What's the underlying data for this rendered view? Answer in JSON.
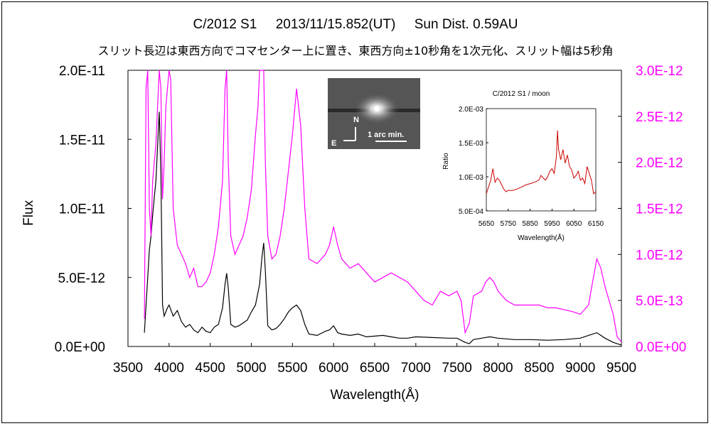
{
  "title": "C/2012 S1     2013/11/15.852(UT)     Sun Dist. 0.59AU",
  "subtitle": "スリット長辺は東西方向でコマセンター上に置き、東西方向±10秒角を1次元化、スリット幅は5秒角",
  "colors": {
    "left_series": "#000000",
    "right_series": "#ff00ff",
    "inset_series": "#cc0000"
  },
  "image_inset": {
    "north_label": "N",
    "east_label": "E",
    "scale_label": "1 arc min."
  },
  "chart_data": [
    {
      "type": "line",
      "xlabel": "Wavelength(Å)",
      "ylabel": "Flux",
      "xlim": [
        3500,
        9500
      ],
      "ylim_left": [
        0,
        2e-11
      ],
      "ylim_right": [
        0,
        3e-12
      ],
      "x_ticks": [
        "3500",
        "4000",
        "4500",
        "5000",
        "5500",
        "6000",
        "6500",
        "7000",
        "7500",
        "8000",
        "8500",
        "9000",
        "9500"
      ],
      "y_ticks_left": [
        "0.0E+00",
        "5.0E-12",
        "1.0E-11",
        "1.5E-11",
        "2.0E-11"
      ],
      "y_ticks_right": [
        "0.0E+00",
        "5.0E-13",
        "1.0E-12",
        "1.5E-12",
        "2.0E-12",
        "2.5E-12",
        "3.0E-12"
      ],
      "series": [
        {
          "axis": "left",
          "x": [
            3700,
            3720,
            3740,
            3760,
            3780,
            3800,
            3820,
            3840,
            3860,
            3880,
            3900,
            3920,
            3940,
            3960,
            3980,
            4000,
            4050,
            4100,
            4150,
            4200,
            4250,
            4300,
            4350,
            4400,
            4450,
            4500,
            4550,
            4600,
            4650,
            4680,
            4700,
            4720,
            4750,
            4800,
            4850,
            4900,
            4950,
            5000,
            5050,
            5100,
            5130,
            5150,
            5170,
            5200,
            5250,
            5300,
            5350,
            5400,
            5450,
            5500,
            5550,
            5600,
            5650,
            5700,
            5800,
            5900,
            5950,
            6000,
            6050,
            6100,
            6200,
            6300,
            6400,
            6500,
            6600,
            6700,
            6800,
            6900,
            7000,
            7200,
            7400,
            7500,
            7600,
            7650,
            7700,
            7800,
            7900,
            8000,
            8200,
            8400,
            8600,
            8800,
            9000,
            9100,
            9200,
            9250,
            9300,
            9400,
            9500
          ],
          "values": [
            1e-12,
            3e-12,
            5e-12,
            7e-12,
            8e-12,
            9.5e-12,
            1.08e-11,
            1.2e-11,
            1.45e-11,
            1.7e-11,
            1.25e-11,
            3e-12,
            2.2e-12,
            2.5e-12,
            2.8e-12,
            3e-12,
            2.2e-12,
            2.6e-12,
            1.8e-12,
            1.4e-12,
            1.6e-12,
            1.2e-12,
            1e-12,
            1.4e-12,
            1.1e-12,
            1e-12,
            1.4e-12,
            1.6e-12,
            2.8e-12,
            4.5e-12,
            5.3e-12,
            4.2e-12,
            1.6e-12,
            1.4e-12,
            1.5e-12,
            1.7e-12,
            1.9e-12,
            2.5e-12,
            3e-12,
            4.5e-12,
            6.5e-12,
            7.5e-12,
            5.5e-12,
            1.5e-12,
            1.2e-12,
            1.3e-12,
            1.6e-12,
            2e-12,
            2.5e-12,
            2.8e-12,
            3e-12,
            2.6e-12,
            1.6e-12,
            9e-13,
            8e-13,
            1.1e-12,
            1.2e-12,
            1.5e-12,
            1e-12,
            9e-13,
            8e-13,
            9e-13,
            7e-13,
            7.5e-13,
            8e-13,
            7e-13,
            6e-13,
            6e-13,
            7e-13,
            6.5e-13,
            6e-13,
            6e-13,
            3e-13,
            2e-13,
            5e-13,
            6e-13,
            7e-13,
            6e-13,
            5e-13,
            5e-13,
            4.5e-13,
            5e-13,
            6e-13,
            8e-13,
            1e-12,
            8e-13,
            6e-13,
            3e-13,
            1e-13
          ]
        },
        {
          "axis": "right",
          "x": [
            3700,
            3720,
            3740,
            3760,
            3780,
            3800,
            3820,
            3840,
            3860,
            3880,
            3900,
            3920,
            3940,
            3960,
            3980,
            4000,
            4020,
            4050,
            4100,
            4150,
            4200,
            4250,
            4300,
            4350,
            4400,
            4450,
            4500,
            4550,
            4600,
            4650,
            4680,
            4700,
            4720,
            4750,
            4800,
            4850,
            4900,
            4950,
            5000,
            5050,
            5080,
            5100,
            5150,
            5170,
            5200,
            5250,
            5300,
            5350,
            5400,
            5450,
            5500,
            5550,
            5600,
            5650,
            5700,
            5800,
            5900,
            5950,
            6000,
            6050,
            6100,
            6200,
            6300,
            6400,
            6500,
            6600,
            6700,
            6800,
            6900,
            7000,
            7100,
            7200,
            7300,
            7400,
            7500,
            7550,
            7600,
            7650,
            7700,
            7800,
            7850,
            7900,
            7950,
            8000,
            8100,
            8200,
            8300,
            8400,
            8500,
            8600,
            8700,
            8800,
            8900,
            9000,
            9100,
            9150,
            9200,
            9250,
            9300,
            9400,
            9450,
            9500
          ],
          "values": [
            3e-13,
            2.8e-12,
            3e-12,
            1.5e-12,
            1.2e-12,
            1.8e-12,
            2e-12,
            2.2e-12,
            2.6e-12,
            3e-12,
            2.8e-12,
            1.6e-12,
            2e-12,
            2.6e-12,
            2.8e-12,
            3e-12,
            2.9e-12,
            1.5e-12,
            1.1e-12,
            1e-12,
            9e-13,
            7.5e-13,
            8.5e-13,
            6.5e-13,
            6.5e-13,
            7e-13,
            8e-13,
            1e-12,
            1.3e-12,
            1.8e-12,
            2.8e-12,
            3e-12,
            2e-12,
            1.2e-12,
            1e-12,
            1.1e-12,
            1.2e-12,
            1.4e-12,
            1.7e-12,
            2.3e-12,
            2.6e-12,
            3e-12,
            3e-12,
            2e-12,
            1.2e-12,
            9.5e-13,
            1e-12,
            1.2e-12,
            1.5e-12,
            1.9e-12,
            2.3e-12,
            2.8e-12,
            2.4e-12,
            1.5e-12,
            9.5e-13,
            9e-13,
            1e-12,
            1.1e-12,
            1.3e-12,
            1.1e-12,
            9.5e-13,
            8.5e-13,
            9e-13,
            8e-13,
            7e-13,
            7.5e-13,
            8e-13,
            7.5e-13,
            7e-13,
            6e-13,
            5e-13,
            4.5e-13,
            6e-13,
            5.5e-13,
            6e-13,
            5e-13,
            1.5e-13,
            2.5e-13,
            5.5e-13,
            6e-13,
            7e-13,
            7.5e-13,
            7e-13,
            6e-13,
            5e-13,
            4.5e-13,
            4.5e-13,
            4.5e-13,
            4.5e-13,
            4.2e-13,
            4.2e-13,
            4e-13,
            3.8e-13,
            3.5e-13,
            4.5e-13,
            7e-13,
            9.5e-13,
            8.5e-13,
            6.5e-13,
            3.5e-13,
            1e-13,
            5e-14
          ]
        }
      ]
    },
    {
      "type": "line",
      "title": "C/2012 S1 / moon",
      "xlabel": "Wavelength(Å)",
      "ylabel": "Ratio",
      "xlim": [
        5650,
        6150
      ],
      "ylim": [
        0.0005,
        0.002
      ],
      "x_ticks": [
        "5650",
        "5750",
        "5850",
        "5950",
        "6050",
        "6150"
      ],
      "y_ticks": [
        "5.0E-04",
        "1.0E-03",
        "1.5E-03",
        "2.0E-03"
      ],
      "series": [
        {
          "x": [
            5650,
            5660,
            5670,
            5680,
            5690,
            5700,
            5710,
            5720,
            5730,
            5740,
            5750,
            5770,
            5790,
            5810,
            5830,
            5850,
            5870,
            5890,
            5900,
            5910,
            5920,
            5930,
            5940,
            5950,
            5960,
            5970,
            5975,
            5980,
            5990,
            6000,
            6010,
            6020,
            6030,
            6040,
            6050,
            6060,
            6070,
            6080,
            6090,
            6100,
            6110,
            6120,
            6130,
            6140,
            6150
          ],
          "values": [
            0.00075,
            0.00085,
            0.00095,
            0.00112,
            0.00092,
            0.00098,
            0.00095,
            0.00088,
            0.00082,
            0.00078,
            0.0008,
            0.0008,
            0.00082,
            0.00085,
            0.00088,
            0.0009,
            0.00092,
            0.00095,
            0.00102,
            0.00098,
            0.00095,
            0.001,
            0.00108,
            0.00112,
            0.00105,
            0.0013,
            0.00168,
            0.0014,
            0.00125,
            0.0014,
            0.0012,
            0.00132,
            0.00115,
            0.0011,
            0.00098,
            0.00102,
            0.00108,
            0.00095,
            0.00098,
            0.0009,
            0.00115,
            0.00105,
            0.00095,
            0.00075,
            0.00078
          ]
        }
      ]
    }
  ]
}
